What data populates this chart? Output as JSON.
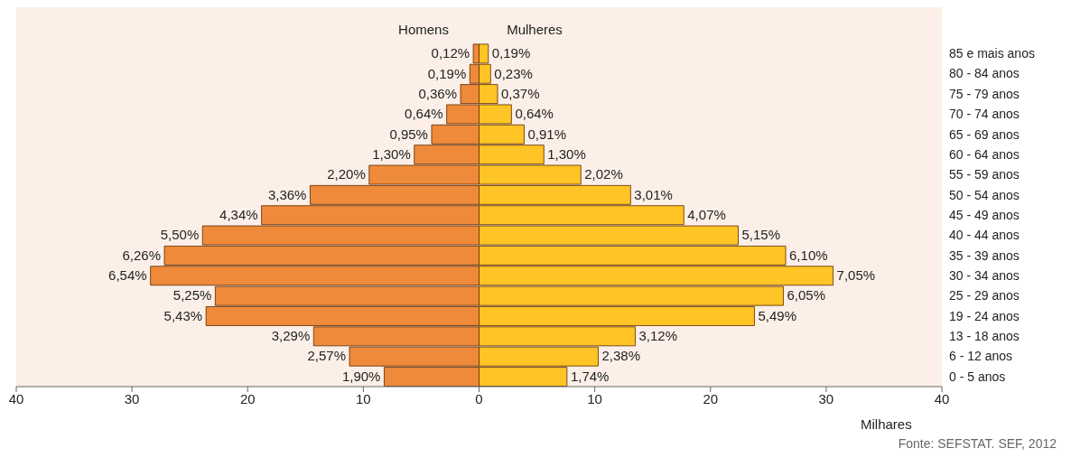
{
  "chart_data": {
    "type": "bar",
    "orientation": "horizontal",
    "stacked": true,
    "grid": false,
    "categories": [
      "85 e mais anos",
      "80 - 84 anos",
      "75 - 79 anos",
      "70 - 74 anos",
      "65 - 69 anos",
      "60 - 64 anos",
      "55 - 59 anos",
      "50 - 54 anos",
      "45 - 49 anos",
      "40 - 44 anos",
      "35 - 39 anos",
      "30 - 34 anos",
      "25 - 29 anos",
      "19 - 24 anos",
      "13 - 18 anos",
      "6 - 12 anos",
      "0 - 5 anos"
    ],
    "series": [
      {
        "name": "Homens",
        "color": "#ee8a3a",
        "values": [
          -0.5,
          -0.8,
          -1.6,
          -2.8,
          -4.1,
          -5.6,
          -9.5,
          -14.6,
          -18.8,
          -23.9,
          -27.2,
          -28.4,
          -22.8,
          -23.6,
          -14.3,
          -11.2,
          -8.2
        ]
      },
      {
        "name": "Mulheres",
        "color": "#ffc425",
        "values": [
          0.8,
          1.0,
          1.6,
          2.8,
          3.9,
          5.6,
          8.8,
          13.1,
          17.7,
          22.4,
          26.5,
          30.6,
          26.3,
          23.8,
          13.5,
          10.3,
          7.6
        ]
      }
    ],
    "xlim": [
      -40,
      40
    ],
    "xticks": [
      {
        "value": -40,
        "label": "40"
      },
      {
        "value": -30,
        "label": "30"
      },
      {
        "value": -20,
        "label": "20"
      },
      {
        "value": -10,
        "label": "10"
      },
      0,
      10,
      20,
      30,
      40
    ],
    "xlabel": "Milhares",
    "annotations": [
      {
        "text": "0,12%",
        "x": -0.5,
        "y": "85 e mais anos"
      },
      {
        "text": "0,19%",
        "x": -0.8,
        "y": "80 - 84 anos"
      },
      {
        "text": "0,36%",
        "x": -1.6,
        "y": "75 - 79 anos"
      },
      {
        "text": "0,64%",
        "x": -2.8,
        "y": "70 - 74 anos"
      },
      {
        "text": "0,95%",
        "x": -4.1,
        "y": "65 - 69 anos"
      },
      {
        "text": "1,30%",
        "x": -5.6,
        "y": "60 - 64 anos"
      },
      {
        "text": "2,20%",
        "x": -9.5,
        "y": "55 - 59 anos"
      },
      {
        "text": "3,36%",
        "x": -14.6,
        "y": "50 - 54 anos"
      },
      {
        "text": "4,34%",
        "x": -18.8,
        "y": "45 - 49 anos"
      },
      {
        "text": "5,50%",
        "x": -23.9,
        "y": "40 - 44 anos"
      },
      {
        "text": "6,26%",
        "x": -27.2,
        "y": "35 - 39 anos"
      },
      {
        "text": "6,54%",
        "x": -28.4,
        "y": "30 - 34 anos"
      },
      {
        "text": "5,25%",
        "x": -22.8,
        "y": "25 - 29 anos"
      },
      {
        "text": "5,43%",
        "x": -23.6,
        "y": "19 - 24 anos"
      },
      {
        "text": "3,29%",
        "x": -14.3,
        "y": "13 - 18 anos"
      },
      {
        "text": "2,57%",
        "x": -11.2,
        "y": "6 - 12 anos"
      },
      {
        "text": "1,90%",
        "x": -8.2,
        "y": "0 - 5 anos"
      },
      {
        "text": "0,19%",
        "x": 0.8,
        "y": "85 e mais anos"
      },
      {
        "text": "0,23%",
        "x": 1.0,
        "y": "80 - 84 anos"
      },
      {
        "text": "0,37%",
        "x": 1.6,
        "y": "75 - 79 anos"
      },
      {
        "text": "0,64%",
        "x": 2.8,
        "y": "70 - 74 anos"
      },
      {
        "text": "0,91%",
        "x": 3.9,
        "y": "65 - 69 anos"
      },
      {
        "text": "1,30%",
        "x": 5.6,
        "y": "60 - 64 anos"
      },
      {
        "text": "2,02%",
        "x": 8.8,
        "y": "55 - 59 anos"
      },
      {
        "text": "3,01%",
        "x": 13.1,
        "y": "50 - 54 anos"
      },
      {
        "text": "4,07%",
        "x": 17.7,
        "y": "45 - 49 anos"
      },
      {
        "text": "5,15%",
        "x": 22.4,
        "y": "40 - 44 anos"
      },
      {
        "text": "6,10%",
        "x": 26.5,
        "y": "35 - 39 anos"
      },
      {
        "text": "7,05%",
        "x": 30.6,
        "y": "30 - 34 anos"
      },
      {
        "text": "6,05%",
        "x": 26.3,
        "y": "25 - 29 anos"
      },
      {
        "text": "5,49%",
        "x": 23.8,
        "y": "19 - 24 anos"
      },
      {
        "text": "3,12%",
        "x": 13.5,
        "y": "13 - 18 anos"
      },
      {
        "text": "2,38%",
        "x": 10.3,
        "y": "6 - 12 anos"
      },
      {
        "text": "1,74%",
        "x": 7.6,
        "y": "0 - 5 anos"
      },
      "Fonte: SEFSTAT. SEF, 2012"
    ]
  }
}
